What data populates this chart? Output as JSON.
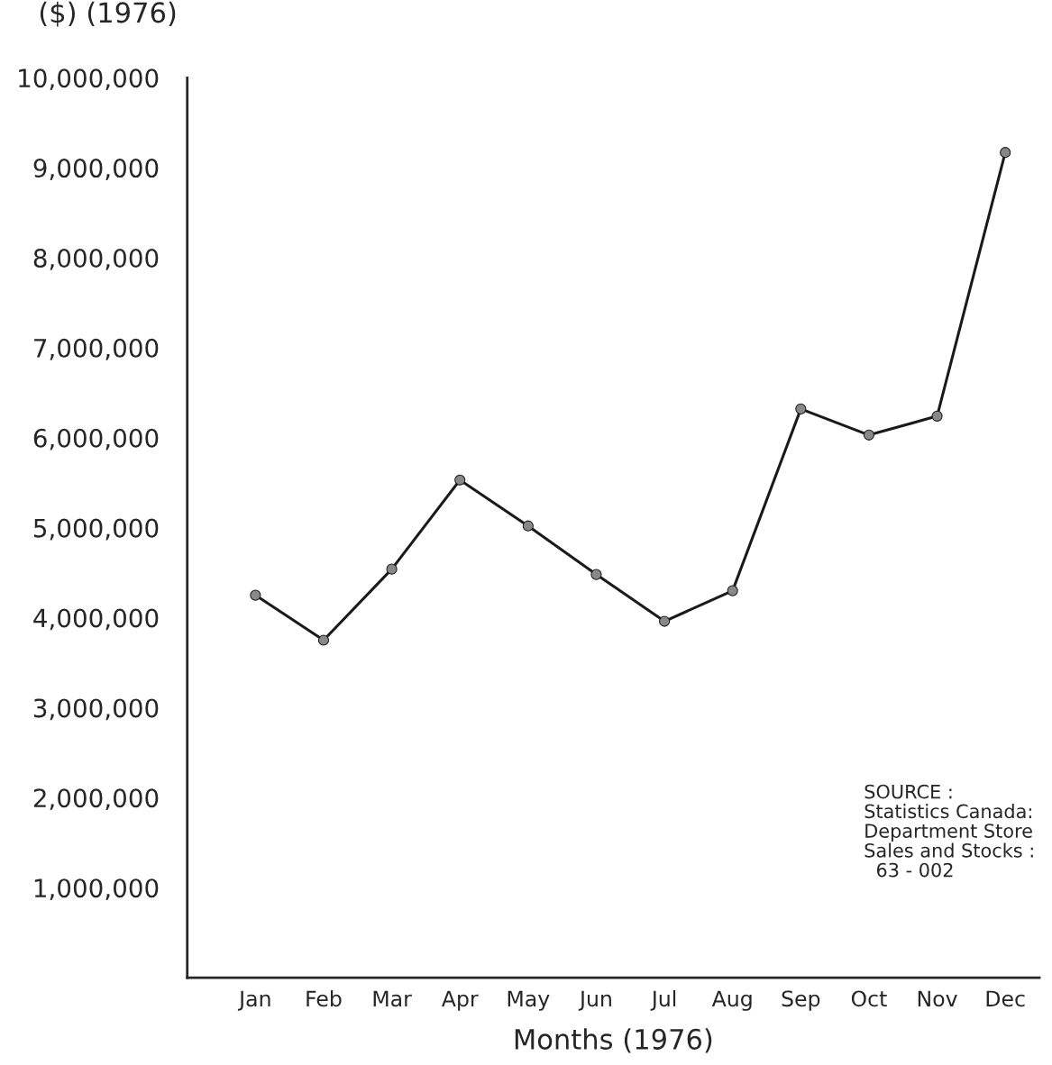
{
  "chart_data": {
    "type": "line",
    "ylabel": "($) (1976)",
    "xlabel": "Months (1976)",
    "categories": [
      "Jan",
      "Feb",
      "Mar",
      "Apr",
      "May",
      "Jun",
      "Jul",
      "Aug",
      "Sep",
      "Oct",
      "Nov",
      "Dec"
    ],
    "series": [
      {
        "color": "#1a1a1a",
        "values": [
          4250000,
          3750000,
          4540000,
          5530000,
          5020000,
          4480000,
          3960000,
          4300000,
          6320000,
          6030000,
          6240000,
          9170000
        ]
      }
    ],
    "ylim": [
      0,
      10000000
    ],
    "yticks": [
      {
        "value": 1000000,
        "label": "1,000,000"
      },
      {
        "value": 2000000,
        "label": "2,000,000"
      },
      {
        "value": 3000000,
        "label": "3,000,000"
      },
      {
        "value": 4000000,
        "label": "4,000,000"
      },
      {
        "value": 5000000,
        "label": "5,000,000"
      },
      {
        "value": 6000000,
        "label": "6,000,000"
      },
      {
        "value": 7000000,
        "label": "7,000,000"
      },
      {
        "value": 8000000,
        "label": "8,000,000"
      },
      {
        "value": 9000000,
        "label": "9,000,000"
      },
      {
        "value": 10000000,
        "label": "10,000,000"
      }
    ],
    "marker": "circle",
    "line_style": "solid",
    "grid": false,
    "legend": false,
    "annotations": [
      "SOURCE :\nStatistics Canada:\nDepartment Store\nSales and Stocks :\n  63 - 002"
    ]
  }
}
